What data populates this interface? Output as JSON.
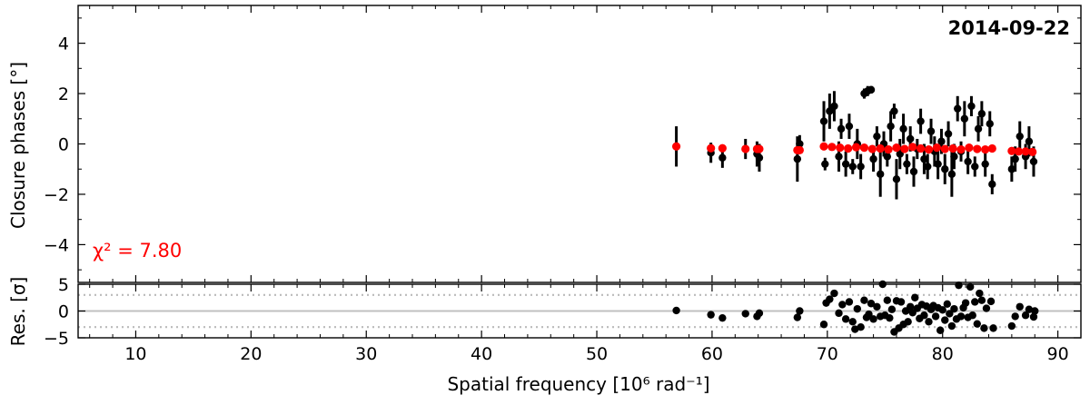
{
  "chart_data": [
    {
      "type": "scatter",
      "panel": "top",
      "title": "2014-09-22",
      "ylabel": "Closure phases [°]",
      "xlabel": "",
      "xlim": [
        5,
        92
      ],
      "ylim": [
        -5.5,
        5.5
      ],
      "yticks": [
        -4,
        -2,
        0,
        2,
        4
      ],
      "grid": false,
      "annotation": "χ² = 7.80",
      "colors": {
        "data": "#000000",
        "model": "#ff0000",
        "annotation": "#ff0000"
      },
      "series": [
        {
          "name": "",
          "role": "data",
          "points": [
            [
              56.9,
              -0.1,
              0.8
            ],
            [
              59.9,
              -0.35,
              0.4
            ],
            [
              60.9,
              -0.55,
              0.4
            ],
            [
              62.9,
              -0.2,
              0.4
            ],
            [
              63.9,
              -0.4,
              0.5
            ],
            [
              64.1,
              -0.55,
              0.55
            ],
            [
              67.4,
              -0.6,
              0.9
            ],
            [
              67.6,
              0.0,
              0.35
            ],
            [
              69.7,
              0.9,
              0.8
            ],
            [
              69.8,
              -0.8,
              0.25
            ],
            [
              70.2,
              1.3,
              0.7
            ],
            [
              70.6,
              1.5,
              0.6
            ],
            [
              71.0,
              -0.5,
              0.6
            ],
            [
              71.2,
              0.6,
              0.4
            ],
            [
              71.6,
              -0.8,
              0.5
            ],
            [
              71.9,
              0.7,
              0.5
            ],
            [
              72.2,
              -0.9,
              0.3
            ],
            [
              72.6,
              0.0,
              0.6
            ],
            [
              72.9,
              -0.9,
              0.5
            ],
            [
              73.2,
              2.0,
              0.2
            ],
            [
              73.5,
              2.1,
              0.2
            ],
            [
              73.8,
              2.15,
              0.15
            ],
            [
              74.0,
              -0.6,
              0.5
            ],
            [
              74.3,
              0.3,
              0.4
            ],
            [
              74.6,
              -1.2,
              0.9
            ],
            [
              74.9,
              0.0,
              0.5
            ],
            [
              75.2,
              -0.5,
              0.4
            ],
            [
              75.5,
              0.7,
              0.6
            ],
            [
              75.8,
              1.3,
              0.3
            ],
            [
              76.0,
              -1.4,
              0.8
            ],
            [
              76.3,
              -0.4,
              0.6
            ],
            [
              76.6,
              0.6,
              0.6
            ],
            [
              76.9,
              -0.8,
              0.4
            ],
            [
              77.2,
              0.2,
              0.5
            ],
            [
              77.5,
              -1.1,
              0.6
            ],
            [
              77.8,
              -0.2,
              0.4
            ],
            [
              78.1,
              0.9,
              0.5
            ],
            [
              78.4,
              -0.6,
              0.6
            ],
            [
              78.7,
              -0.9,
              0.5
            ],
            [
              79.0,
              0.5,
              0.5
            ],
            [
              79.3,
              -0.3,
              0.6
            ],
            [
              79.6,
              -0.8,
              0.6
            ],
            [
              79.9,
              0.1,
              0.5
            ],
            [
              80.2,
              -1.0,
              0.6
            ],
            [
              80.5,
              0.4,
              0.5
            ],
            [
              80.8,
              -1.2,
              0.9
            ],
            [
              81.0,
              -0.5,
              0.5
            ],
            [
              81.3,
              1.4,
              0.5
            ],
            [
              81.6,
              -0.3,
              0.4
            ],
            [
              81.9,
              1.0,
              0.7
            ],
            [
              82.2,
              -0.7,
              0.5
            ],
            [
              82.5,
              1.5,
              0.4
            ],
            [
              82.8,
              -0.9,
              0.4
            ],
            [
              83.1,
              0.6,
              0.5
            ],
            [
              83.4,
              1.2,
              0.5
            ],
            [
              83.7,
              -0.8,
              0.5
            ],
            [
              84.1,
              0.8,
              0.5
            ],
            [
              84.3,
              -1.6,
              0.4
            ],
            [
              86.0,
              -1.0,
              0.5
            ],
            [
              86.3,
              -0.6,
              0.5
            ],
            [
              86.7,
              0.3,
              0.6
            ],
            [
              87.2,
              -0.5,
              0.5
            ],
            [
              87.5,
              0.1,
              0.6
            ],
            [
              87.9,
              -0.7,
              0.6
            ]
          ]
        },
        {
          "name": "",
          "role": "model",
          "points": [
            [
              56.9,
              -0.1
            ],
            [
              59.9,
              -0.17
            ],
            [
              60.9,
              -0.17
            ],
            [
              62.9,
              -0.2
            ],
            [
              63.9,
              -0.2
            ],
            [
              64.1,
              -0.2
            ],
            [
              67.4,
              -0.25
            ],
            [
              67.6,
              -0.25
            ],
            [
              69.7,
              -0.1
            ],
            [
              70.4,
              -0.12
            ],
            [
              71.1,
              -0.15
            ],
            [
              71.8,
              -0.18
            ],
            [
              72.5,
              -0.13
            ],
            [
              73.2,
              -0.15
            ],
            [
              73.9,
              -0.2
            ],
            [
              74.6,
              -0.18
            ],
            [
              75.3,
              -0.22
            ],
            [
              76.0,
              -0.15
            ],
            [
              76.7,
              -0.2
            ],
            [
              77.4,
              -0.12
            ],
            [
              78.1,
              -0.18
            ],
            [
              78.8,
              -0.22
            ],
            [
              79.5,
              -0.15
            ],
            [
              80.2,
              -0.2
            ],
            [
              80.9,
              -0.18
            ],
            [
              81.6,
              -0.22
            ],
            [
              82.3,
              -0.15
            ],
            [
              83.0,
              -0.2
            ],
            [
              83.7,
              -0.22
            ],
            [
              84.3,
              -0.18
            ],
            [
              86.0,
              -0.28
            ],
            [
              86.6,
              -0.3
            ],
            [
              87.2,
              -0.3
            ],
            [
              87.8,
              -0.32
            ]
          ]
        }
      ]
    },
    {
      "type": "scatter",
      "panel": "bottom",
      "xlabel": "Spatial frequency [10⁶ rad⁻¹]",
      "ylabel": "Res. [σ]",
      "xlim": [
        5,
        92
      ],
      "ylim": [
        -5,
        5
      ],
      "xticks": [
        10,
        20,
        30,
        40,
        50,
        60,
        70,
        80,
        90
      ],
      "yticks": [
        -5,
        0,
        5
      ],
      "reference_lines": [
        {
          "y": 0,
          "style": "solid",
          "color": "#c0c0c0"
        },
        {
          "y": 3,
          "style": "dotted",
          "color": "#bbbbbb"
        },
        {
          "y": -3,
          "style": "dotted",
          "color": "#bbbbbb"
        }
      ],
      "series": [
        {
          "name": "",
          "role": "residuals",
          "points": [
            [
              56.9,
              0.1
            ],
            [
              59.9,
              -0.7
            ],
            [
              60.9,
              -1.3
            ],
            [
              62.9,
              -0.5
            ],
            [
              63.9,
              -1.0
            ],
            [
              64.1,
              -0.4
            ],
            [
              67.4,
              -1.2
            ],
            [
              67.6,
              0.0
            ],
            [
              69.7,
              -2.5
            ],
            [
              69.9,
              1.5
            ],
            [
              70.2,
              2.2
            ],
            [
              70.6,
              3.3
            ],
            [
              71.0,
              -0.4
            ],
            [
              71.3,
              1.2
            ],
            [
              71.6,
              -1.5
            ],
            [
              71.9,
              1.7
            ],
            [
              72.2,
              -2.0
            ],
            [
              72.4,
              -3.4
            ],
            [
              72.6,
              0.4
            ],
            [
              72.9,
              -3.0
            ],
            [
              73.2,
              2.0
            ],
            [
              73.4,
              -1.2
            ],
            [
              73.6,
              -0.6
            ],
            [
              73.8,
              1.4
            ],
            [
              74.0,
              -1.5
            ],
            [
              74.3,
              0.8
            ],
            [
              74.6,
              -1.0
            ],
            [
              74.8,
              5.0
            ],
            [
              75.0,
              -0.8
            ],
            [
              75.2,
              2.0
            ],
            [
              75.4,
              -1.3
            ],
            [
              75.6,
              0.3
            ],
            [
              75.8,
              -3.9
            ],
            [
              76.0,
              1.9
            ],
            [
              76.2,
              -3.2
            ],
            [
              76.4,
              1.7
            ],
            [
              76.6,
              -2.5
            ],
            [
              76.8,
              0.0
            ],
            [
              77.0,
              -2.0
            ],
            [
              77.2,
              0.8
            ],
            [
              77.4,
              -0.3
            ],
            [
              77.6,
              2.5
            ],
            [
              77.8,
              0.5
            ],
            [
              78.0,
              -1.4
            ],
            [
              78.2,
              1.2
            ],
            [
              78.4,
              -0.8
            ],
            [
              78.6,
              0.9
            ],
            [
              78.8,
              -2.0
            ],
            [
              79.0,
              0.3
            ],
            [
              79.2,
              1.0
            ],
            [
              79.4,
              -1.0
            ],
            [
              79.6,
              0.6
            ],
            [
              79.8,
              -3.6
            ],
            [
              80.0,
              0.2
            ],
            [
              80.2,
              -1.7
            ],
            [
              80.4,
              1.3
            ],
            [
              80.6,
              -0.5
            ],
            [
              80.8,
              -2.8
            ],
            [
              81.0,
              0.4
            ],
            [
              81.2,
              -1.5
            ],
            [
              81.4,
              4.8
            ],
            [
              81.6,
              -1.0
            ],
            [
              81.8,
              0.6
            ],
            [
              82.0,
              1.5
            ],
            [
              82.2,
              -1.2
            ],
            [
              82.4,
              4.5
            ],
            [
              82.6,
              -0.8
            ],
            [
              82.8,
              1.7
            ],
            [
              83.0,
              -2.4
            ],
            [
              83.2,
              3.3
            ],
            [
              83.4,
              2.0
            ],
            [
              83.6,
              -3.2
            ],
            [
              83.8,
              0.5
            ],
            [
              84.2,
              1.8
            ],
            [
              84.4,
              -3.2
            ],
            [
              86.0,
              -2.8
            ],
            [
              86.3,
              -1.0
            ],
            [
              86.7,
              0.8
            ],
            [
              87.2,
              -0.8
            ],
            [
              87.5,
              0.3
            ],
            [
              87.9,
              -1.1
            ],
            [
              88.0,
              0.0
            ]
          ]
        }
      ]
    }
  ]
}
